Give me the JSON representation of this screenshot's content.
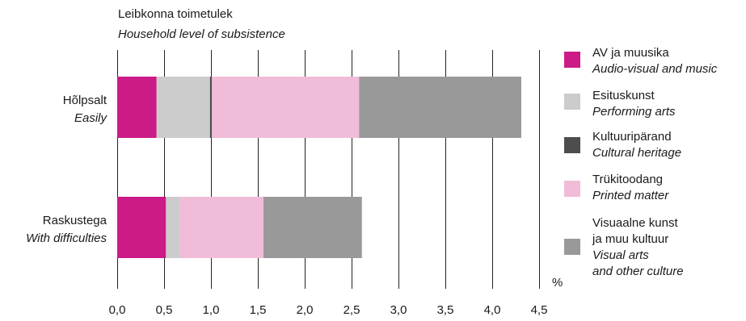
{
  "chart_data": {
    "type": "bar",
    "orientation": "horizontal",
    "stacked": true,
    "title": "Leibkonna toimetulek",
    "subtitle": "Household level of subsistence",
    "xlabel": "%",
    "xlim": [
      0,
      4.5
    ],
    "xticks": [
      "0,0",
      "0,5",
      "1,0",
      "1,5",
      "2,0",
      "2,5",
      "3,0",
      "3,5",
      "4,0",
      "4,5"
    ],
    "grid": true,
    "legend_position": "right",
    "categories": [
      {
        "label": "Hõlpsalt",
        "label_en": "Easily"
      },
      {
        "label": "Raskustega",
        "label_en": "With difficulties"
      }
    ],
    "series": [
      {
        "name": "AV ja muusika",
        "name_en": "Audio-visual and music",
        "color": "#cc1a87",
        "values": [
          0.42,
          0.52
        ]
      },
      {
        "name": "Esituskunst",
        "name_en": "Performing arts",
        "color": "#cccccc",
        "values": [
          0.57,
          0.15
        ]
      },
      {
        "name": "Kultuuripärand",
        "name_en": "Cultural heritage",
        "color": "#4d4d4d",
        "values": [
          0.02,
          0.0
        ]
      },
      {
        "name": "Trükitoodang",
        "name_en": "Printed matter",
        "color": "#f0bcd7",
        "values": [
          1.57,
          0.89
        ]
      },
      {
        "name": [
          "Visuaalne kunst",
          "ja muu kultuur"
        ],
        "name_en": [
          "Visual arts",
          "and other culture"
        ],
        "color": "#999999",
        "values": [
          1.73,
          1.05
        ]
      }
    ]
  }
}
